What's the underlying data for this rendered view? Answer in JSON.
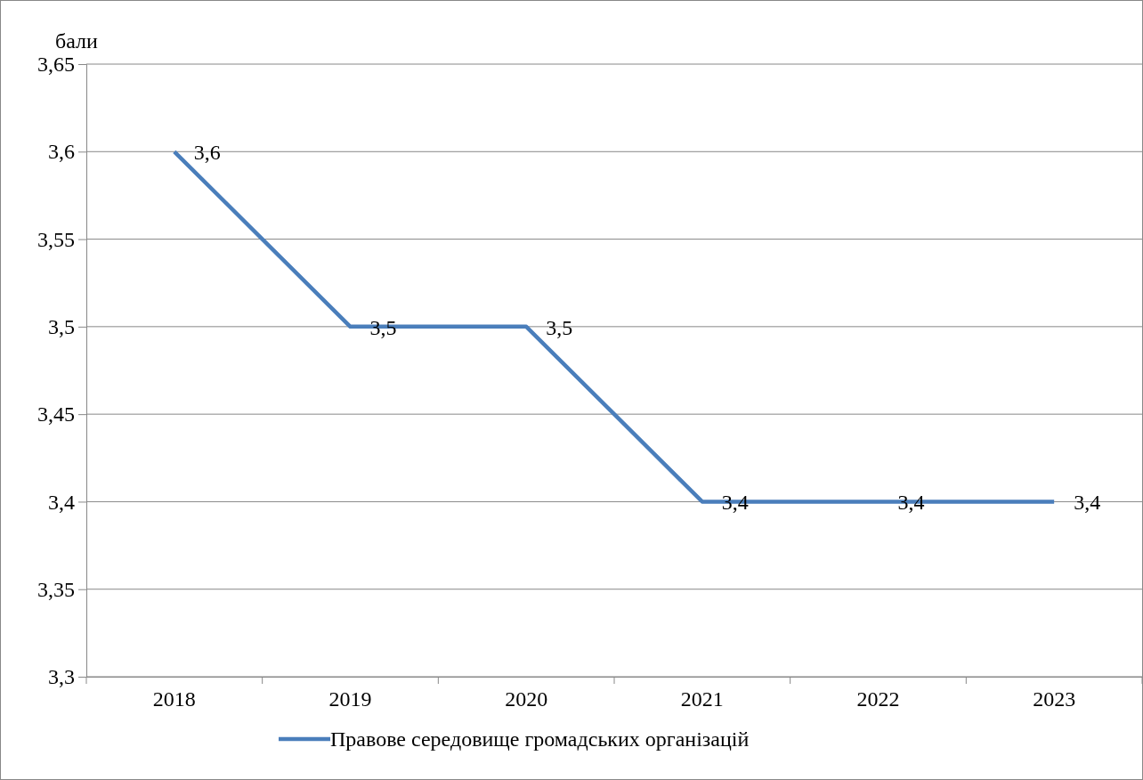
{
  "chart_data": {
    "type": "line",
    "ylabel": "бали",
    "categories": [
      "2018",
      "2019",
      "2020",
      "2021",
      "2022",
      "2023"
    ],
    "series": [
      {
        "name": "Правове середовище громадських організацій",
        "color": "#4a7ebb",
        "values": [
          3.6,
          3.5,
          3.5,
          3.4,
          3.4,
          3.4
        ],
        "value_labels": [
          "3,6",
          "3,5",
          "3,5",
          "3,4",
          "3,4",
          "3,4"
        ]
      }
    ],
    "ylim": [
      3.3,
      3.65
    ],
    "yticks": [
      {
        "value": 3.3,
        "label": "3,3"
      },
      {
        "value": 3.35,
        "label": "3,35"
      },
      {
        "value": 3.4,
        "label": "3,4"
      },
      {
        "value": 3.45,
        "label": "3,45"
      },
      {
        "value": 3.5,
        "label": "3,5"
      },
      {
        "value": 3.55,
        "label": "3,55"
      },
      {
        "value": 3.6,
        "label": "3,6"
      },
      {
        "value": 3.65,
        "label": "3,65"
      }
    ],
    "grid": "y",
    "legend": "bottom",
    "marker": "none",
    "line_style": "solid"
  }
}
